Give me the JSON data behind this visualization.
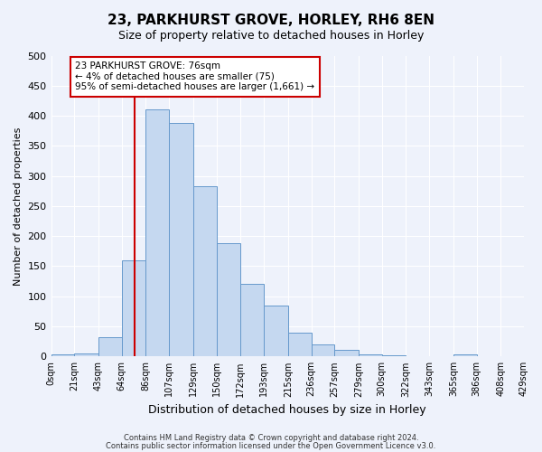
{
  "title": "23, PARKHURST GROVE, HORLEY, RH6 8EN",
  "subtitle": "Size of property relative to detached houses in Horley",
  "xlabel": "Distribution of detached houses by size in Horley",
  "ylabel": "Number of detached properties",
  "bin_labels": [
    "0sqm",
    "21sqm",
    "43sqm",
    "64sqm",
    "86sqm",
    "107sqm",
    "129sqm",
    "150sqm",
    "172sqm",
    "193sqm",
    "215sqm",
    "236sqm",
    "257sqm",
    "279sqm",
    "300sqm",
    "322sqm",
    "343sqm",
    "365sqm",
    "386sqm",
    "408sqm",
    "429sqm"
  ],
  "bin_edges": [
    0,
    21,
    43,
    64,
    86,
    107,
    129,
    150,
    172,
    193,
    215,
    236,
    257,
    279,
    300,
    322,
    343,
    365,
    386,
    408,
    429
  ],
  "bar_heights": [
    4,
    5,
    32,
    160,
    410,
    388,
    283,
    188,
    121,
    85,
    40,
    20,
    11,
    4,
    2,
    0,
    0,
    3,
    1,
    0
  ],
  "bar_color": "#c5d8f0",
  "bar_edge_color": "#6699cc",
  "property_line_x": 76,
  "property_line_color": "#cc0000",
  "annotation_text": "23 PARKHURST GROVE: 76sqm\n← 4% of detached houses are smaller (75)\n95% of semi-detached houses are larger (1,661) →",
  "annotation_box_color": "#ffffff",
  "annotation_box_edge_color": "#cc0000",
  "ylim": [
    0,
    500
  ],
  "background_color": "#eef2fb",
  "grid_color": "#ffffff",
  "footer_line1": "Contains HM Land Registry data © Crown copyright and database right 2024.",
  "footer_line2": "Contains public sector information licensed under the Open Government Licence v3.0."
}
